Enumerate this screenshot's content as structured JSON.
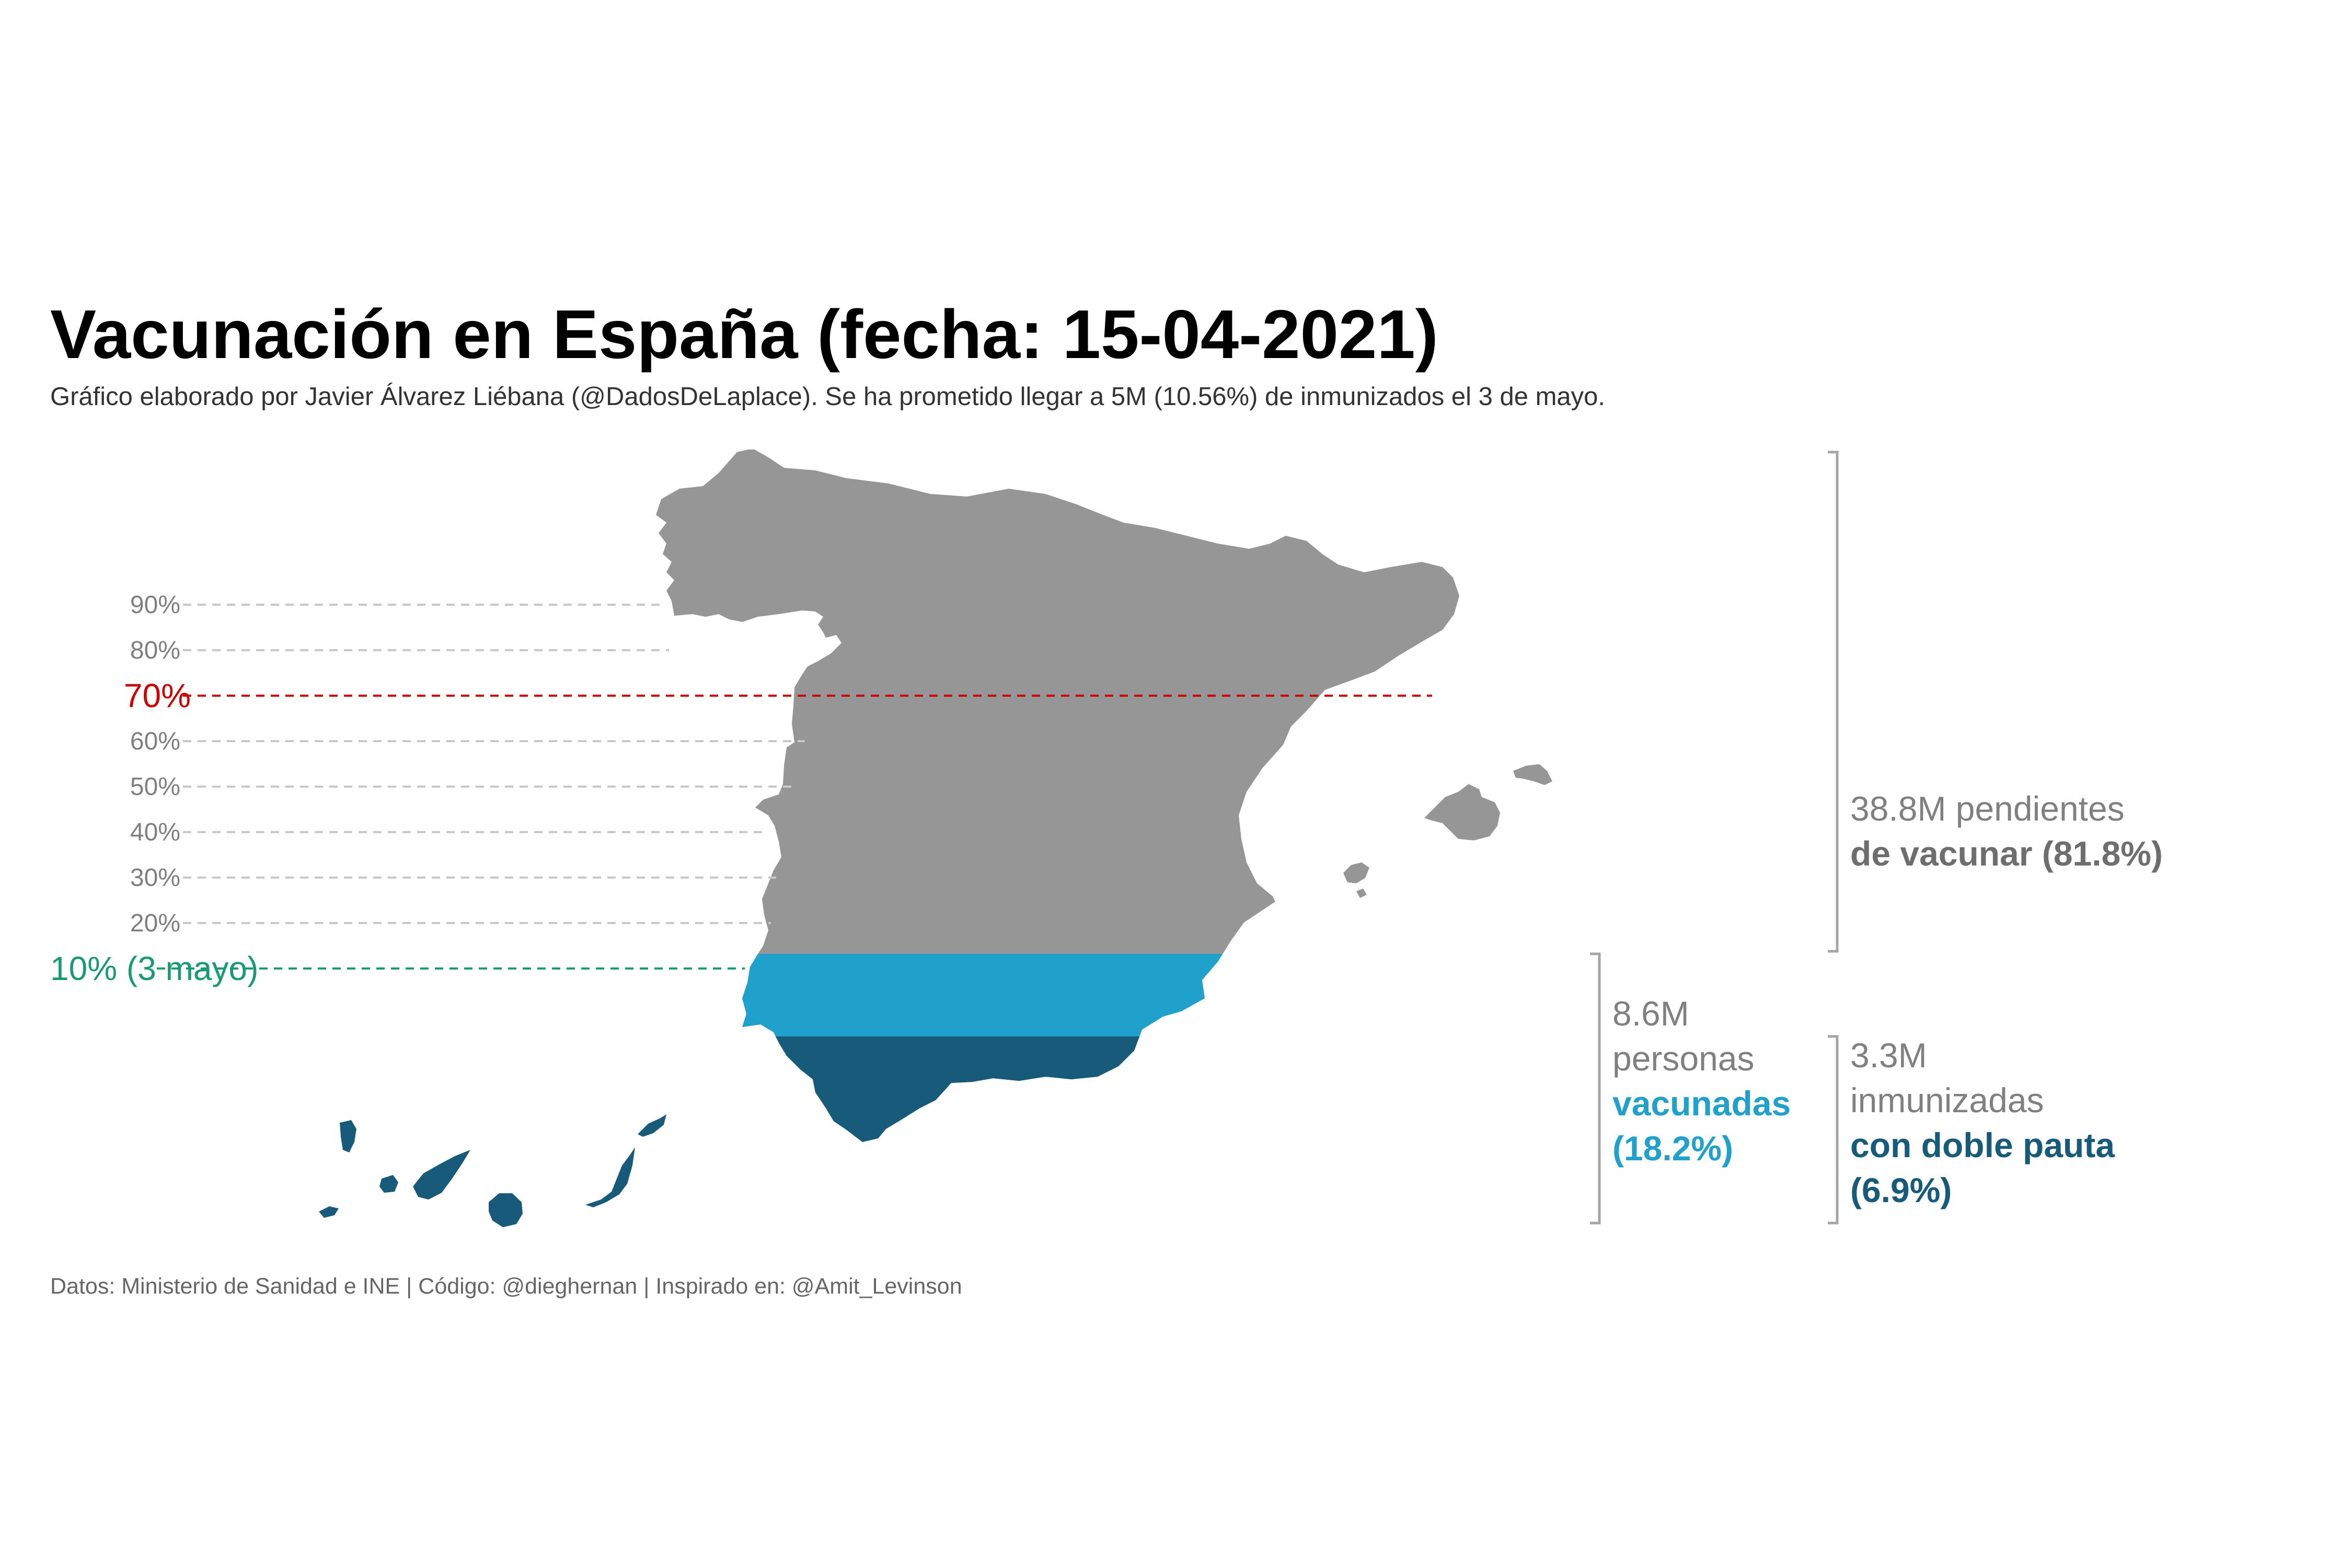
{
  "title": "Vacunación en España (fecha: 15-04-2021)",
  "subtitle": "Gráfico elaborado por Javier Álvarez Liébana (@DadosDeLaplace). Se ha prometido llegar a 5M (10.56%) de inmunizados el 3 de mayo.",
  "caption": "Datos: Ministerio de Sanidad e INE | Código: @dieghernan | Inspirado en: @Amit_Levinson",
  "colors": {
    "pendientes": "#969696",
    "vacunadas": "#1fa1cb",
    "doble_pauta": "#175a79",
    "threshold_70": "#cc0000",
    "target_10": "#1a9a74",
    "gridline": "#c8c8c8",
    "tick_text": "#808080",
    "bracket": "#a6a6a6",
    "annotation_grey": "#808080"
  },
  "chart_data": {
    "type": "map",
    "title": "Vacunación en España (fecha: 15-04-2021)",
    "y_axis_ticks": [
      {
        "value": 90,
        "label": "90%"
      },
      {
        "value": 80,
        "label": "80%"
      },
      {
        "value": 60,
        "label": "60%"
      },
      {
        "value": 50,
        "label": "50%"
      },
      {
        "value": 40,
        "label": "40%"
      },
      {
        "value": 30,
        "label": "30%"
      },
      {
        "value": 20,
        "label": "20%"
      }
    ],
    "reference_lines": [
      {
        "value": 70,
        "label": "70%",
        "color": "#cc0000"
      },
      {
        "value": 10,
        "label": "10% (3 mayo)",
        "color": "#1a9a74"
      }
    ],
    "ylim": [
      0,
      100
    ],
    "series": [
      {
        "name": "pendientes de vacunar",
        "count": "38.8M",
        "percent": 81.8,
        "color": "#969696"
      },
      {
        "name": "vacunadas",
        "count": "8.6M",
        "percent": 18.2,
        "color": "#1fa1cb"
      },
      {
        "name": "inmunizadas con doble pauta",
        "count": "3.3M",
        "percent": 6.9,
        "color": "#175a79"
      }
    ],
    "annotations": [
      {
        "id": "pendientes",
        "lines": [
          {
            "text": "38.8M pendientes",
            "bold": false,
            "color": "#808080"
          },
          {
            "text": "de vacunar (81.8%)",
            "bold": true,
            "color": "#6e6e6e"
          }
        ]
      },
      {
        "id": "vacunadas",
        "lines": [
          {
            "text": "8.6M",
            "bold": false,
            "color": "#808080"
          },
          {
            "text": "personas",
            "bold": false,
            "color": "#808080"
          },
          {
            "text": "vacunadas",
            "bold": true,
            "color": "#1fa1cb"
          },
          {
            "text": "(18.2%)",
            "bold": true,
            "color": "#1fa1cb"
          }
        ]
      },
      {
        "id": "doble_pauta",
        "lines": [
          {
            "text": "3.3M",
            "bold": false,
            "color": "#808080"
          },
          {
            "text": "inmunizadas",
            "bold": false,
            "color": "#808080"
          },
          {
            "text": "con doble pauta",
            "bold": true,
            "color": "#175a79"
          },
          {
            "text": "(6.9%)",
            "bold": true,
            "color": "#175a79"
          }
        ]
      }
    ]
  }
}
